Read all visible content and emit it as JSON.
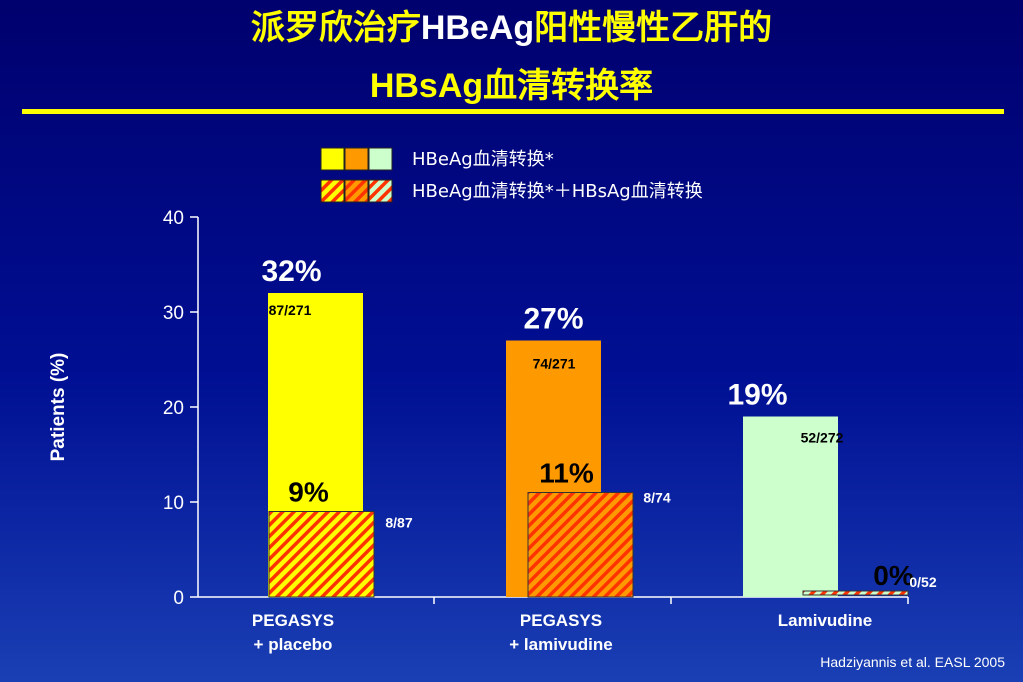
{
  "title": {
    "line1_cn1": "派罗欣治疗",
    "line1_en": "HBeAg",
    "line1_cn2": "阳性慢性乙肝的",
    "line2_en": "HBsAg",
    "line2_cn": "血清转换率"
  },
  "citation": "Hadziyannis et al. EASL 2005",
  "colors": {
    "yellow": "#ffff00",
    "orange": "#ff9900",
    "pale_green": "#ccffcc",
    "hatch": "#ff3300",
    "axis": "#ffffff"
  },
  "chart_data": {
    "type": "bar",
    "ylabel": "Patients (%)",
    "ylim": [
      0,
      40
    ],
    "yticks": [
      0,
      10,
      20,
      30,
      40
    ],
    "legend_position": "top",
    "categories": [
      {
        "line1": "PEGASYS",
        "line2": "+ placebo"
      },
      {
        "line1": "PEGASYS",
        "line2": "+ lamivudine"
      },
      {
        "line1": "Lamivudine",
        "line2": ""
      }
    ],
    "series": [
      {
        "name": "HBeAg血清转换*",
        "values": [
          32,
          27,
          19
        ],
        "labels": [
          "32%",
          "27%",
          "19%"
        ],
        "counts": [
          "87/271",
          "74/271",
          "52/272"
        ],
        "colors": [
          "#ffff00",
          "#ff9900",
          "#ccffcc"
        ]
      },
      {
        "name": "HBeAg血清转换*＋HBsAg血清转换",
        "values": [
          9,
          11,
          0
        ],
        "labels": [
          "9%",
          "11%",
          "0%"
        ],
        "counts": [
          "8/87",
          "8/74",
          "0/52"
        ],
        "colors": [
          "#ffff00",
          "#ff9900",
          "#ccffcc"
        ],
        "pattern": "hatched"
      }
    ]
  }
}
